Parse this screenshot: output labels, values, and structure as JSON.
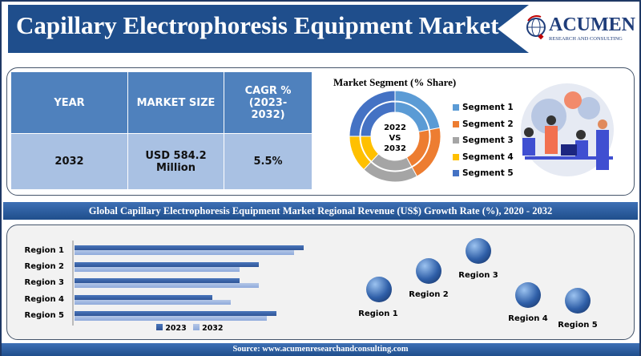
{
  "header": {
    "title": "Capillary Electrophoresis Equipment Market",
    "logo_brand": "ACUMEN",
    "logo_sub": "RESEARCH AND CONSULTING"
  },
  "table": {
    "headers": [
      "YEAR",
      "MARKET SIZE",
      "CAGR % (2023-2032)"
    ],
    "row": [
      "2032",
      "USD 584.2 Million",
      "5.5%"
    ]
  },
  "segment": {
    "title": "Market Segment (% Share)",
    "center": [
      "2022",
      "VS",
      "2032"
    ],
    "items": [
      {
        "label": "Segment 1",
        "color": "#5b9bd5"
      },
      {
        "label": "Segment 2",
        "color": "#ed7d31"
      },
      {
        "label": "Segment 3",
        "color": "#a5a5a5"
      },
      {
        "label": "Segment 4",
        "color": "#ffc000"
      },
      {
        "label": "Segment 5",
        "color": "#4472c4"
      }
    ]
  },
  "section_title": "Global Capillary Electrophoresis Equipment Market Regional Revenue (US$) Growth Rate (%), 2020 - 2032",
  "chart_data": {
    "type": "bar",
    "orientation": "horizontal",
    "categories": [
      "Region 1",
      "Region 2",
      "Region 3",
      "Region 4",
      "Region 5"
    ],
    "series": [
      {
        "name": "2023",
        "values": [
          293,
          235,
          211,
          176,
          258
        ]
      },
      {
        "name": "2032",
        "values": [
          281,
          211,
          235,
          200,
          246
        ]
      }
    ],
    "xlim": [
      0,
      300
    ],
    "legend": "bottom",
    "note": "relative values, no axis scale shown"
  },
  "regions": [
    "Region 1",
    "Region 2",
    "Region 3",
    "Region 4",
    "Region 5"
  ],
  "footer": "Source: www.acumenresearchandconsulting.com"
}
